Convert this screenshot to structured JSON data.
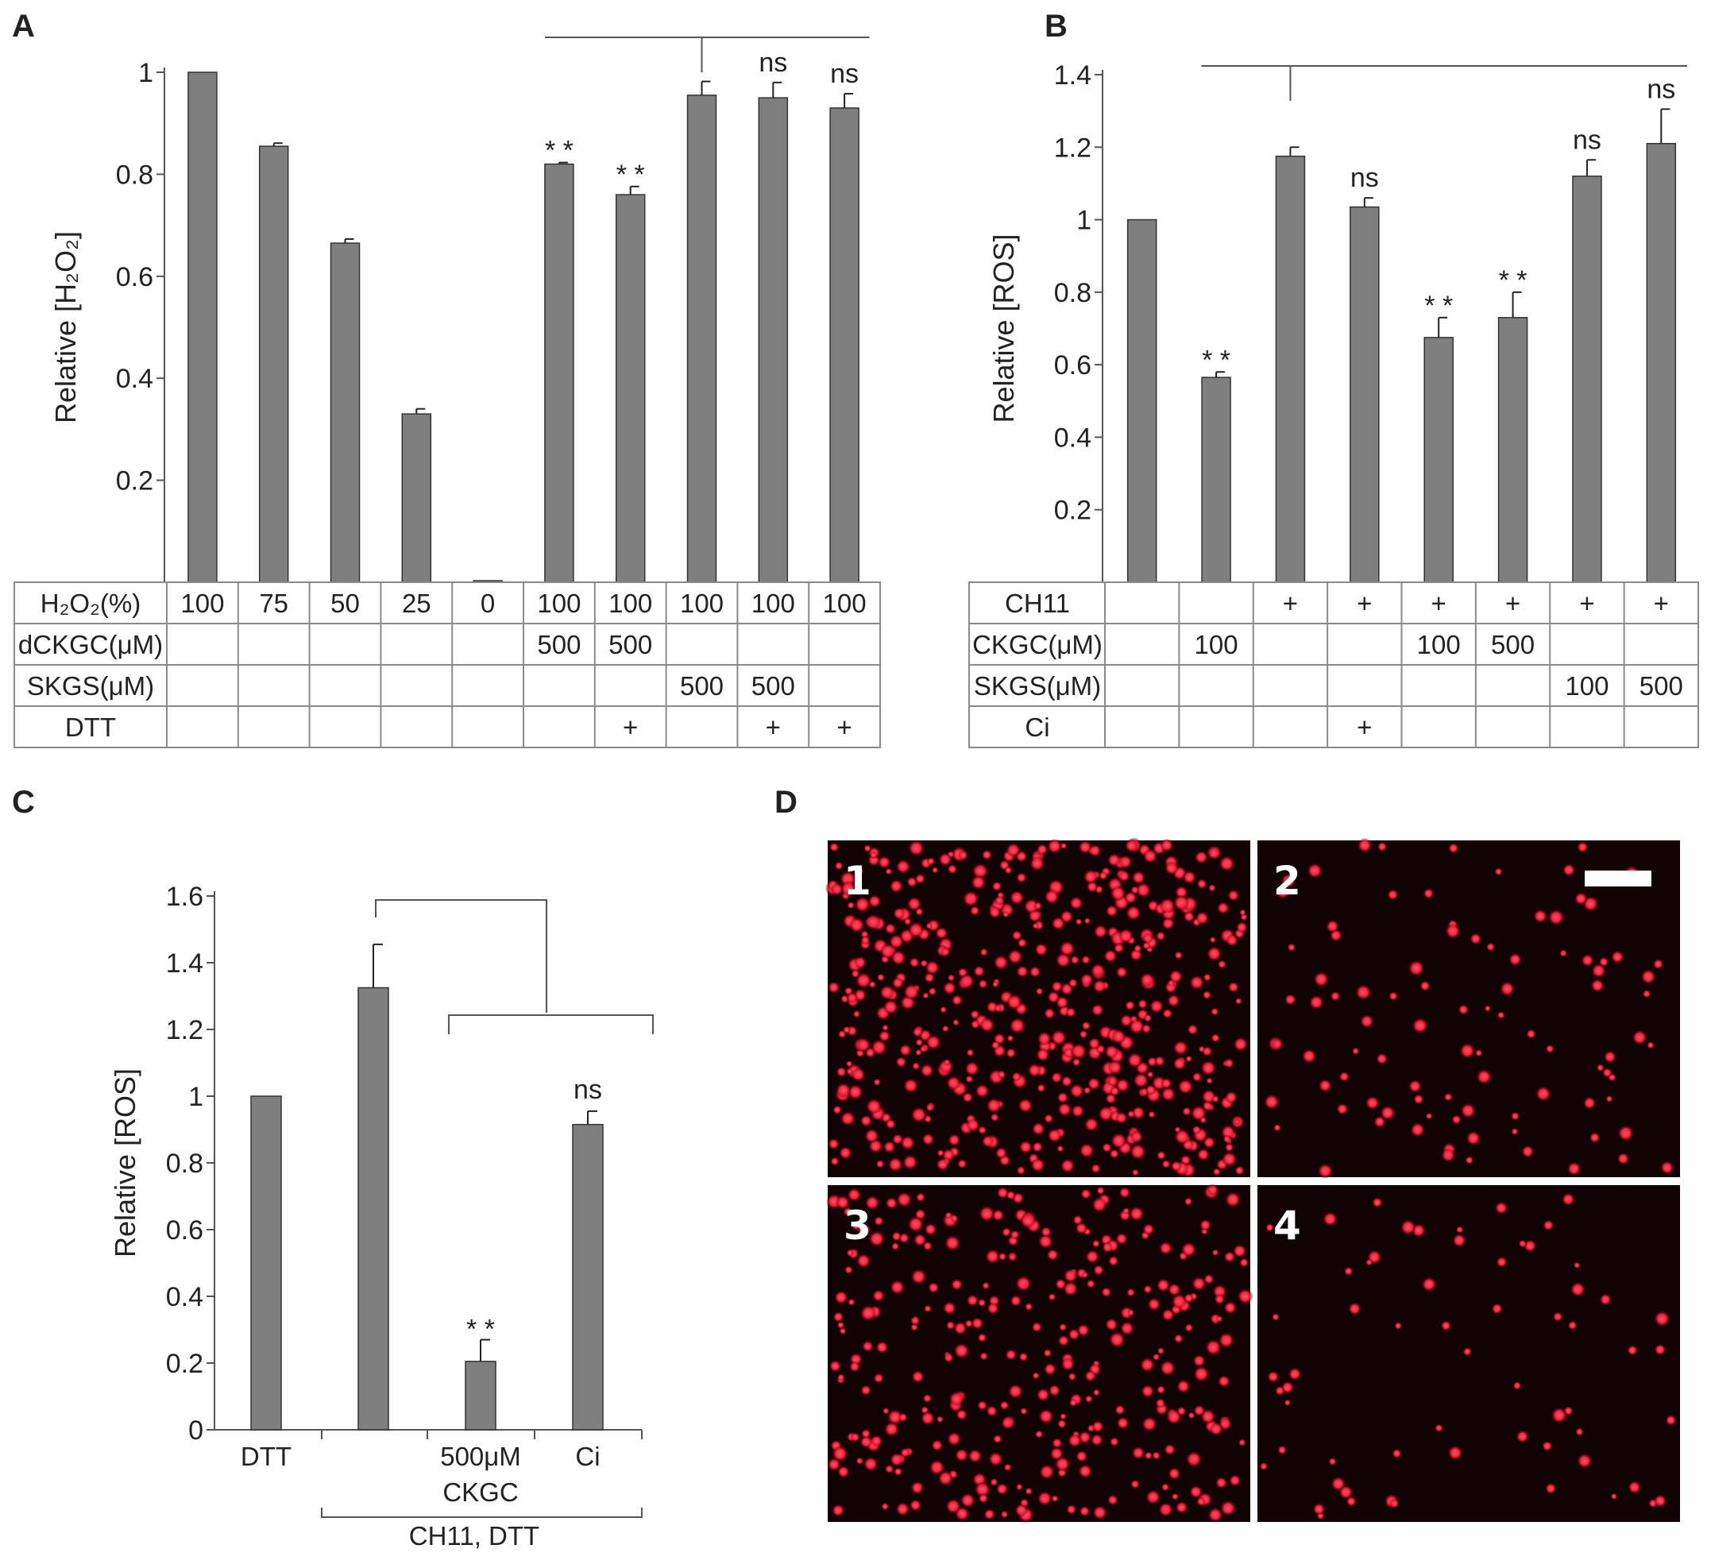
{
  "colors": {
    "bar": "#7f7f7f",
    "bar_stroke": "#333333",
    "axis": "#555555",
    "table_line": "#8a8a8a",
    "micro_bg": "#120305",
    "micro_cell": "#ff1f3a"
  },
  "panels": {
    "A": {
      "letter": "A"
    },
    "B": {
      "letter": "B"
    },
    "C": {
      "letter": "C"
    },
    "D": {
      "letter": "D"
    }
  },
  "chart_data": [
    {
      "id": "A",
      "type": "bar",
      "ylabel": "Relative [H₂O₂]",
      "ylim": [
        0,
        1
      ],
      "yticks": [
        "0.2",
        "0.4",
        "0.6",
        "0.8",
        "1"
      ],
      "values": [
        1.0,
        0.855,
        0.665,
        0.33,
        0.003,
        0.82,
        0.76,
        0.955,
        0.95,
        0.93
      ],
      "errors": [
        0,
        0.006,
        0.008,
        0.01,
        0,
        0.003,
        0.016,
        0.027,
        0.03,
        0.028
      ],
      "annotations": [
        "",
        "",
        "",
        "",
        "",
        "**",
        "**",
        "",
        "ns",
        "ns"
      ],
      "bracket": {
        "from": 5,
        "to": 9,
        "anchor": 7
      },
      "table": {
        "rows": [
          {
            "label": "H₂O₂(%)",
            "cells": [
              "100",
              "75",
              "50",
              "25",
              "0",
              "100",
              "100",
              "100",
              "100",
              "100"
            ]
          },
          {
            "label": "dCKGC(μM)",
            "cells": [
              "",
              "",
              "",
              "",
              "",
              "500",
              "500",
              "",
              "",
              ""
            ]
          },
          {
            "label": "SKGS(μM)",
            "cells": [
              "",
              "",
              "",
              "",
              "",
              "",
              "",
              "500",
              "500",
              ""
            ]
          },
          {
            "label": "DTT",
            "cells": [
              "",
              "",
              "",
              "",
              "",
              "",
              "+",
              "",
              "+",
              "+"
            ]
          }
        ]
      }
    },
    {
      "id": "B",
      "type": "bar",
      "ylabel": "Relative [ROS]",
      "ylim": [
        0,
        1.4
      ],
      "yticks": [
        "0.2",
        "0.4",
        "0.6",
        "0.8",
        "1",
        "1.2",
        "1.4"
      ],
      "values": [
        1.0,
        0.565,
        1.175,
        1.035,
        0.675,
        0.73,
        1.12,
        1.21
      ],
      "errors": [
        0,
        0.015,
        0.025,
        0.025,
        0.055,
        0.07,
        0.045,
        0.095
      ],
      "annotations": [
        "",
        "**",
        "",
        "ns",
        "**",
        "**",
        "ns",
        "ns"
      ],
      "bracket": {
        "from": 1,
        "to": 7,
        "anchor": 2
      },
      "table": {
        "rows": [
          {
            "label": "CH11",
            "cells": [
              "",
              "",
              "+",
              "+",
              "+",
              "+",
              "+",
              "+"
            ]
          },
          {
            "label": "CKGC(μM)",
            "cells": [
              "",
              "100",
              "",
              "",
              "100",
              "500",
              "",
              ""
            ]
          },
          {
            "label": "SKGS(μM)",
            "cells": [
              "",
              "",
              "",
              "",
              "",
              "",
              "100",
              "500"
            ]
          },
          {
            "label": "Ci",
            "cells": [
              "",
              "",
              "",
              "+",
              "",
              "",
              "",
              ""
            ]
          }
        ]
      }
    },
    {
      "id": "C",
      "type": "bar",
      "ylabel": "Relative [ROS]",
      "ylim": [
        0,
        1.6
      ],
      "yticks": [
        "0",
        "0.2",
        "0.4",
        "0.6",
        "0.8",
        "1",
        "1.2",
        "1.4",
        "1.6"
      ],
      "values": [
        1.0,
        1.325,
        0.205,
        0.915
      ],
      "errors": [
        0,
        0.13,
        0.065,
        0.04
      ],
      "annotations": [
        "",
        "",
        "**",
        "ns"
      ],
      "categories": [
        "DTT",
        "",
        "500μM",
        "Ci"
      ],
      "group_labels": {
        "ckgc": "CKGC",
        "ch11": "CH11, DTT"
      }
    }
  ],
  "micrographs": {
    "panel_labels": [
      "1",
      "2",
      "3",
      "4"
    ],
    "density": [
      1.0,
      0.18,
      0.62,
      0.12
    ],
    "scale_bar": true
  }
}
